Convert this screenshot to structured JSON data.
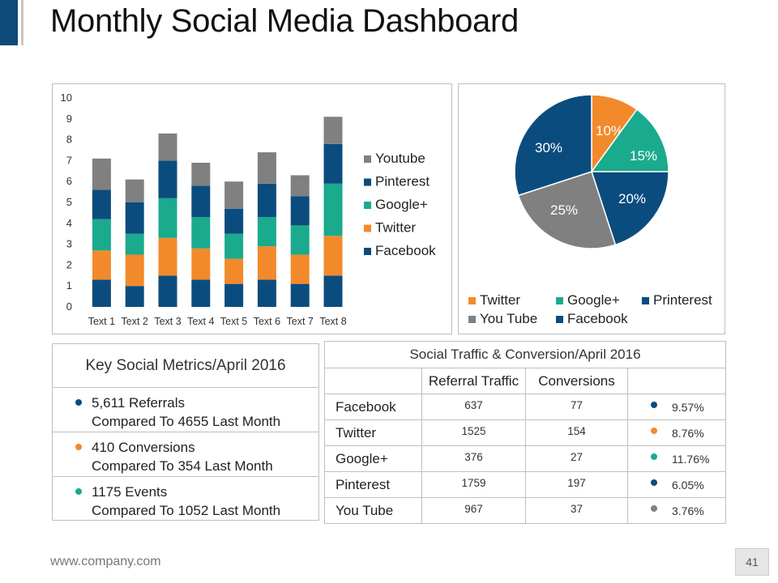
{
  "title": "Monthly Social Media Dashboard",
  "colors": {
    "Facebook": "#0b4c7e",
    "Twitter": "#f28a2b",
    "Google+": "#1aaa8e",
    "Pinterest": "#0b4c7e",
    "Youtube": "#808080",
    "accent": "#0d4a78"
  },
  "chart_data": [
    {
      "type": "bar",
      "stacked": true,
      "categories": [
        "Text 1",
        "Text 2",
        "Text 3",
        "Text 4",
        "Text 5",
        "Text 6",
        "Text 7",
        "Text 8"
      ],
      "series": [
        {
          "name": "Facebook",
          "values": [
            1.3,
            1.0,
            1.5,
            1.3,
            1.1,
            1.3,
            1.1,
            1.5
          ]
        },
        {
          "name": "Twitter",
          "values": [
            1.4,
            1.5,
            1.8,
            1.5,
            1.2,
            1.6,
            1.4,
            1.9
          ]
        },
        {
          "name": "Google+",
          "values": [
            1.5,
            1.0,
            1.9,
            1.5,
            1.2,
            1.4,
            1.4,
            2.5
          ]
        },
        {
          "name": "Pinterest",
          "values": [
            1.4,
            1.5,
            1.8,
            1.5,
            1.2,
            1.6,
            1.4,
            1.9
          ]
        },
        {
          "name": "Youtube",
          "values": [
            1.5,
            1.1,
            1.3,
            1.1,
            1.3,
            1.5,
            1.0,
            1.3
          ]
        }
      ],
      "legend_order": [
        "Youtube",
        "Pinterest",
        "Google+",
        "Twitter",
        "Facebook"
      ],
      "yticks": [
        "0",
        "1",
        "2",
        "3",
        "4",
        "5",
        "6",
        "7",
        "8",
        "9",
        "10"
      ],
      "ylim": [
        0,
        10
      ],
      "legend_position": "right"
    },
    {
      "type": "pie",
      "slices": [
        {
          "name": "Twitter",
          "value": 10,
          "label": "10%",
          "color": "#f28a2b"
        },
        {
          "name": "Google+",
          "value": 15,
          "label": "15%",
          "color": "#1aaa8e"
        },
        {
          "name": "Printerest",
          "value": 20,
          "label": "20%",
          "color": "#0b4c7e"
        },
        {
          "name": "You Tube",
          "value": 25,
          "label": "25%",
          "color": "#808080"
        },
        {
          "name": "Facebook",
          "value": 30,
          "label": "30%",
          "color": "#0b4c7e"
        }
      ],
      "legend": [
        {
          "name": "Twitter",
          "color": "#f28a2b"
        },
        {
          "name": "Google+",
          "color": "#1aaa8e"
        },
        {
          "name": "Printerest",
          "color": "#0b4c7e"
        },
        {
          "name": "You Tube",
          "color": "#808080"
        },
        {
          "name": "Facebook",
          "color": "#0b4c7e"
        }
      ],
      "legend_position": "bottom"
    }
  ],
  "metrics": {
    "title": "Key Social Metrics/April 2016",
    "items": [
      {
        "line1": "5,611 Referrals",
        "line2": "Compared To 4655 Last Month",
        "color": "#0b4c7e"
      },
      {
        "line1": "410 Conversions",
        "line2": "Compared To 354 Last Month",
        "color": "#f28a2b"
      },
      {
        "line1": "1175 Events",
        "line2": "Compared To 1052 Last Month",
        "color": "#1aaa8e"
      }
    ]
  },
  "traffic": {
    "title": "Social Traffic & Conversion/April 2016",
    "headers": [
      "Referral Traffic",
      "Conversions"
    ],
    "rows": [
      {
        "name": "Facebook",
        "referral": "637",
        "conversions": "77",
        "pct": "9.57%",
        "color": "#0b4c7e"
      },
      {
        "name": "Twitter",
        "referral": "1525",
        "conversions": "154",
        "pct": "8.76%",
        "color": "#f28a2b"
      },
      {
        "name": "Google+",
        "referral": "376",
        "conversions": "27",
        "pct": "11.76%",
        "color": "#1aaa8e"
      },
      {
        "name": "Pinterest",
        "referral": "1759",
        "conversions": "197",
        "pct": "6.05%",
        "color": "#0b4c7e"
      },
      {
        "name": "You Tube",
        "referral": "967",
        "conversions": "37",
        "pct": "3.76%",
        "color": "#808080"
      }
    ]
  },
  "footer": {
    "url": "www.company.com",
    "page": "41"
  }
}
